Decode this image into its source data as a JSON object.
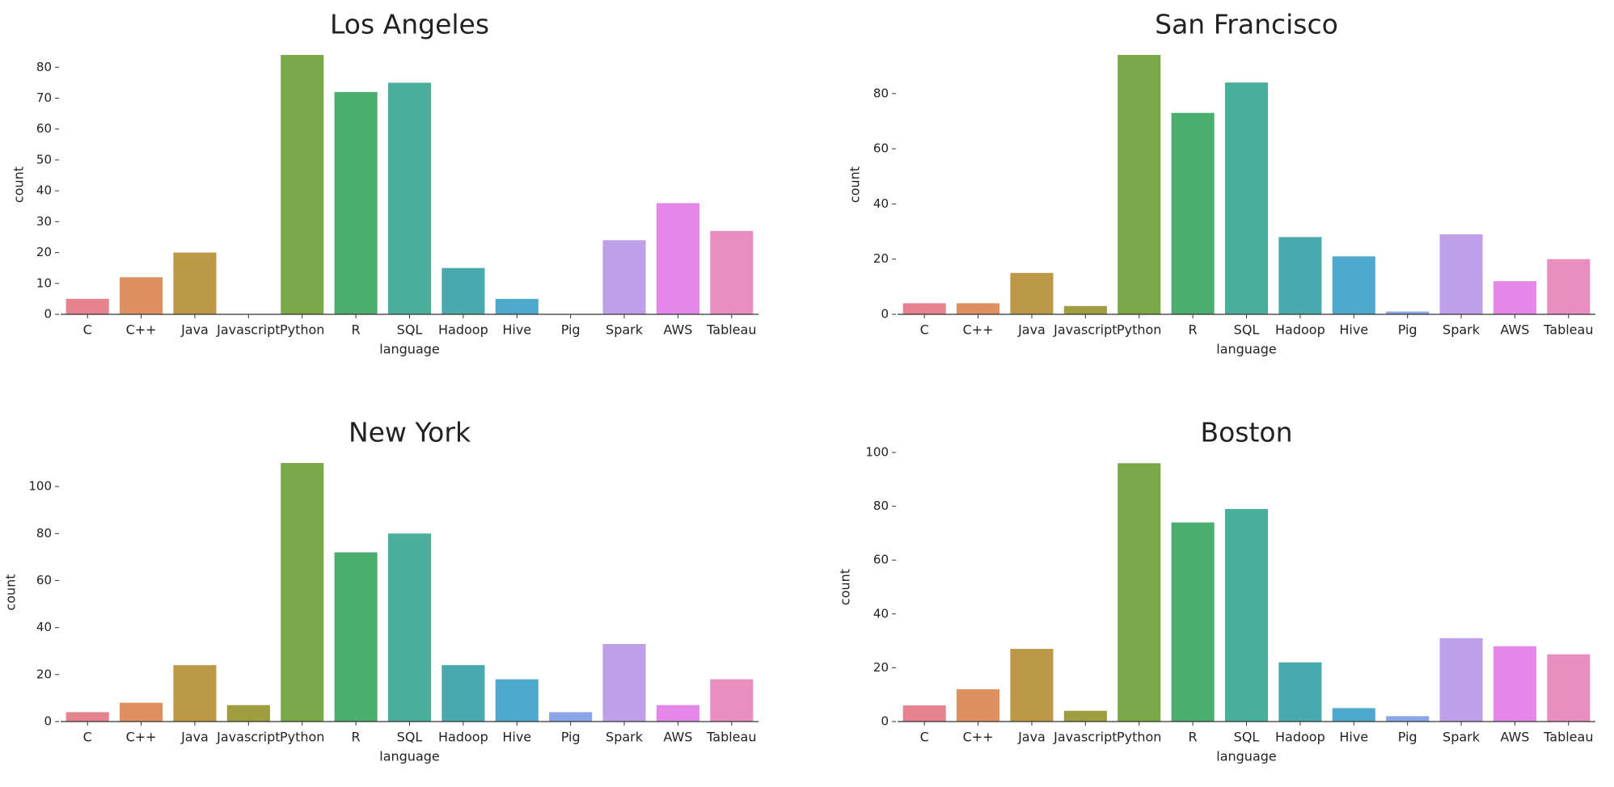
{
  "chart_data": [
    {
      "type": "bar",
      "title": "Los Angeles",
      "xlabel": "language",
      "ylabel": "count",
      "categories": [
        "C",
        "C++",
        "Java",
        "Javascript",
        "Python",
        "R",
        "SQL",
        "Hadoop",
        "Hive",
        "Pig",
        "Spark",
        "AWS",
        "Tableau"
      ],
      "values": [
        5,
        12,
        20,
        0,
        84,
        72,
        75,
        15,
        5,
        0,
        24,
        36,
        27
      ],
      "colors": [
        "#e5838e",
        "#e0905e",
        "#bd9847",
        "#9e9d40",
        "#7aa848",
        "#4aae6e",
        "#4aae9a",
        "#49a9ac",
        "#4fa9cd",
        "#8aa5e8",
        "#bfa0e8",
        "#e587e8",
        "#e88fbf"
      ],
      "ylim": [
        0,
        84
      ],
      "yticks": [
        0,
        10,
        20,
        30,
        40,
        50,
        60,
        70,
        80
      ]
    },
    {
      "type": "bar",
      "title": "San Francisco",
      "xlabel": "language",
      "ylabel": "count",
      "categories": [
        "C",
        "C++",
        "Java",
        "Javascript",
        "Python",
        "R",
        "SQL",
        "Hadoop",
        "Hive",
        "Pig",
        "Spark",
        "AWS",
        "Tableau"
      ],
      "values": [
        4,
        4,
        15,
        3,
        94,
        73,
        84,
        28,
        21,
        1,
        29,
        12,
        20
      ],
      "colors": [
        "#e5838e",
        "#e0905e",
        "#bd9847",
        "#9e9d40",
        "#7aa848",
        "#4aae6e",
        "#4aae9a",
        "#49a9ac",
        "#4fa9cd",
        "#8aa5e8",
        "#bfa0e8",
        "#e587e8",
        "#e88fbf"
      ],
      "ylim": [
        0,
        94
      ],
      "yticks": [
        0,
        20,
        40,
        60,
        80
      ]
    },
    {
      "type": "bar",
      "title": "New York",
      "xlabel": "language",
      "ylabel": "count",
      "categories": [
        "C",
        "C++",
        "Java",
        "Javascript",
        "Python",
        "R",
        "SQL",
        "Hadoop",
        "Hive",
        "Pig",
        "Spark",
        "AWS",
        "Tableau"
      ],
      "values": [
        4,
        8,
        24,
        7,
        110,
        72,
        80,
        24,
        18,
        4,
        33,
        7,
        18
      ],
      "colors": [
        "#e5838e",
        "#e0905e",
        "#bd9847",
        "#9e9d40",
        "#7aa848",
        "#4aae6e",
        "#4aae9a",
        "#49a9ac",
        "#4fa9cd",
        "#8aa5e8",
        "#bfa0e8",
        "#e587e8",
        "#e88fbf"
      ],
      "ylim": [
        0,
        110
      ],
      "yticks": [
        0,
        20,
        40,
        60,
        80,
        100
      ]
    },
    {
      "type": "bar",
      "title": "Boston",
      "xlabel": "language",
      "ylabel": "count",
      "categories": [
        "C",
        "C++",
        "Java",
        "Javascript",
        "Python",
        "R",
        "SQL",
        "Hadoop",
        "Hive",
        "Pig",
        "Spark",
        "AWS",
        "Tableau"
      ],
      "values": [
        6,
        12,
        27,
        4,
        96,
        74,
        79,
        22,
        5,
        2,
        31,
        28,
        25
      ],
      "colors": [
        "#e5838e",
        "#e0905e",
        "#bd9847",
        "#9e9d40",
        "#7aa848",
        "#4aae6e",
        "#4aae9a",
        "#49a9ac",
        "#4fa9cd",
        "#8aa5e8",
        "#bfa0e8",
        "#e587e8",
        "#e88fbf"
      ],
      "ylim": [
        0,
        100
      ],
      "yticks": [
        0,
        20,
        40,
        60,
        80,
        100
      ]
    }
  ]
}
